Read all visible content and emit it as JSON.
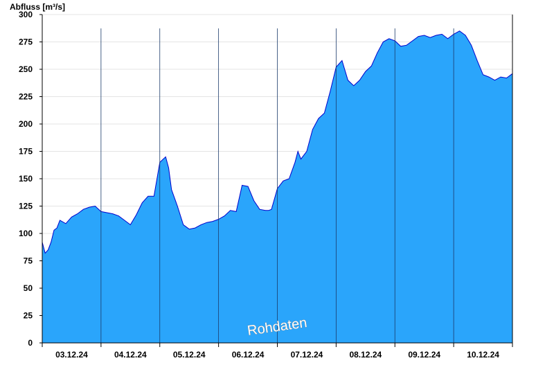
{
  "chart_data": {
    "type": "area",
    "ylabel": "Abfluss [m³/s]",
    "ylim": [
      0,
      300
    ],
    "yticks": [
      0,
      25,
      50,
      75,
      100,
      125,
      150,
      175,
      200,
      225,
      250,
      275,
      300
    ],
    "x_day_labels": [
      "03.12.24",
      "04.12.24",
      "05.12.24",
      "06.12.24",
      "07.12.24",
      "08.12.24",
      "09.12.24",
      "10.12.24"
    ],
    "grid": true,
    "watermark": "Rohdaten",
    "colors": {
      "fill": "#2aa5fb",
      "line": "#0000cc",
      "grid": "#e4e4e4"
    },
    "series": [
      {
        "x_days": [
          0,
          0.05,
          0.1,
          0.15,
          0.2,
          0.25,
          0.3,
          0.4,
          0.5,
          0.6,
          0.7,
          0.8,
          0.9,
          1.0,
          1.1,
          1.2,
          1.3,
          1.4,
          1.5,
          1.6,
          1.7,
          1.8,
          1.9,
          2.0,
          2.1,
          2.15,
          2.2,
          2.3,
          2.4,
          2.5,
          2.6,
          2.7,
          2.8,
          2.9,
          3.0,
          3.1,
          3.2,
          3.3,
          3.4,
          3.5,
          3.6,
          3.7,
          3.8,
          3.85,
          3.9,
          4.0,
          4.1,
          4.2,
          4.3,
          4.35,
          4.4,
          4.5,
          4.6,
          4.7,
          4.8,
          4.9,
          5.0,
          5.1,
          5.2,
          5.3,
          5.4,
          5.5,
          5.6,
          5.7,
          5.8,
          5.9,
          6.0,
          6.1,
          6.2,
          6.3,
          6.4,
          6.5,
          6.6,
          6.7,
          6.8,
          6.9,
          7.0,
          7.1,
          7.2,
          7.3,
          7.4,
          7.5,
          7.6,
          7.7,
          7.8,
          7.9,
          8.0
        ],
        "values": [
          92,
          82,
          85,
          92,
          103,
          105,
          112,
          109,
          115,
          118,
          122,
          124,
          125,
          120,
          119,
          118,
          116,
          112,
          108,
          117,
          128,
          134,
          134,
          165,
          170,
          160,
          140,
          125,
          108,
          104,
          105,
          108,
          110,
          111,
          113,
          116,
          121,
          120,
          144,
          143,
          130,
          122,
          121,
          121,
          122,
          141,
          148,
          150,
          165,
          175,
          168,
          175,
          195,
          205,
          210,
          230,
          252,
          258,
          240,
          235,
          240,
          248,
          253,
          265,
          275,
          278,
          276,
          271,
          272,
          276,
          280,
          281,
          279,
          281,
          282,
          278,
          282,
          285,
          281,
          272,
          258,
          245,
          243,
          240,
          243,
          242,
          246
        ]
      }
    ]
  }
}
